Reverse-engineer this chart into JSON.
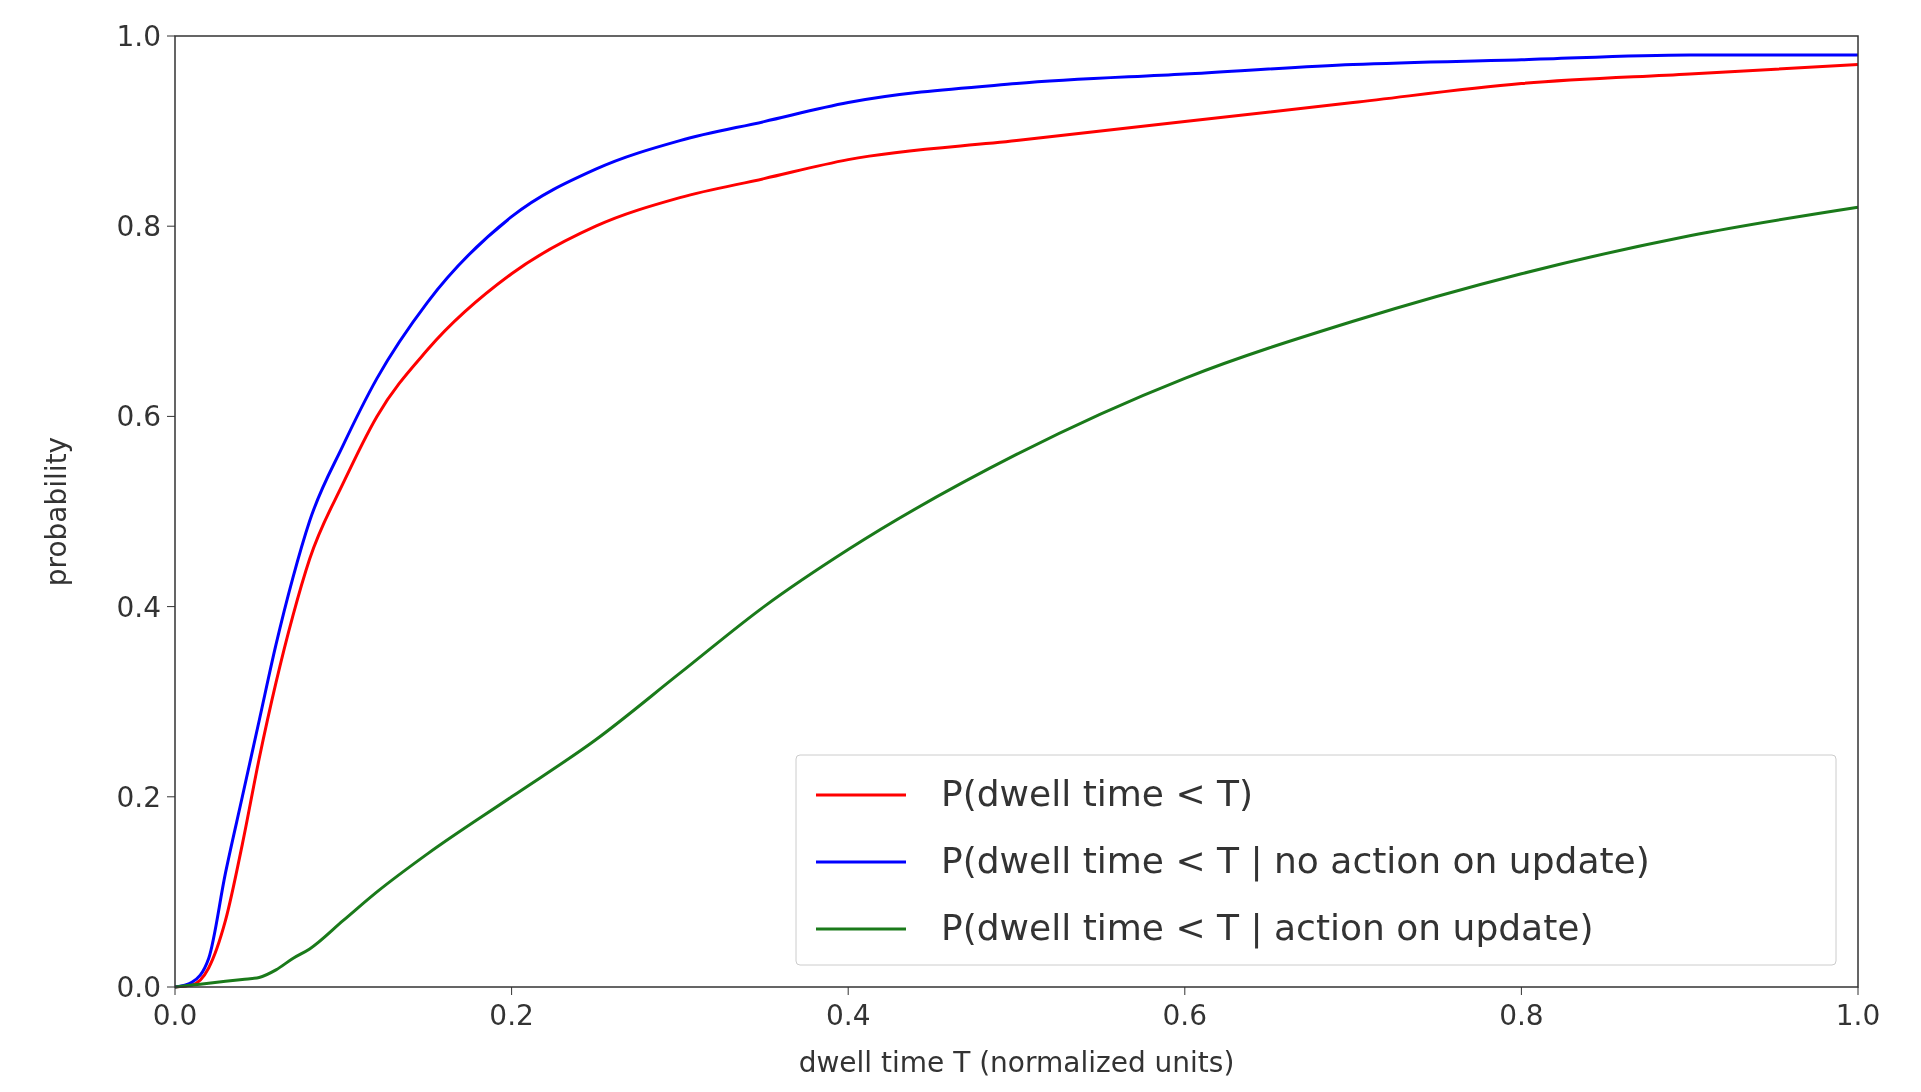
{
  "chart_data": {
    "type": "line",
    "xlabel": "dwell time T (normalized units)",
    "ylabel": "probability",
    "xlim": [
      0,
      1
    ],
    "ylim": [
      0,
      1
    ],
    "xticks": [
      {
        "value": 0,
        "label": "0.0"
      },
      0.2,
      0.4,
      0.6,
      0.8,
      {
        "value": 1,
        "label": "1.0"
      }
    ],
    "yticks": [
      {
        "value": 0,
        "label": "0.0"
      },
      0.2,
      0.4,
      0.6,
      0.8,
      {
        "value": 1,
        "label": "1.0"
      }
    ],
    "legend": "bottom right",
    "line_style": "solid",
    "x": [
      0,
      0.01,
      0.02,
      0.03,
      0.04,
      0.05,
      0.06,
      0.07,
      0.08,
      0.1,
      0.12,
      0.15,
      0.2,
      0.25,
      0.3,
      0.35,
      0.4,
      0.5,
      0.6,
      0.7,
      0.8,
      0.9,
      1.0
    ],
    "series": [
      {
        "name": "P(dwell time < T)",
        "color": "#ff0000",
        "values": [
          0,
          0.002,
          0.02,
          0.07,
          0.15,
          0.24,
          0.32,
          0.39,
          0.45,
          0.53,
          0.6,
          0.67,
          0.75,
          0.8,
          0.83,
          0.85,
          0.87,
          0.89,
          0.91,
          0.93,
          0.95,
          0.96,
          0.97
        ]
      },
      {
        "name": "P(dwell time < T | no action on update)",
        "color": "#0000ff",
        "values": [
          0,
          0.005,
          0.03,
          0.12,
          0.2,
          0.28,
          0.36,
          0.43,
          0.49,
          0.57,
          0.64,
          0.72,
          0.81,
          0.86,
          0.89,
          0.91,
          0.93,
          0.95,
          0.96,
          0.97,
          0.975,
          0.98,
          0.98
        ]
      },
      {
        "name": "P(dwell time < T | action on update)",
        "color": "#1a7a1a",
        "values": [
          0,
          0.002,
          0.004,
          0.006,
          0.008,
          0.01,
          0.018,
          0.03,
          0.04,
          0.07,
          0.1,
          0.14,
          0.2,
          0.26,
          0.33,
          0.4,
          0.46,
          0.56,
          0.64,
          0.7,
          0.75,
          0.79,
          0.82
        ]
      }
    ]
  }
}
